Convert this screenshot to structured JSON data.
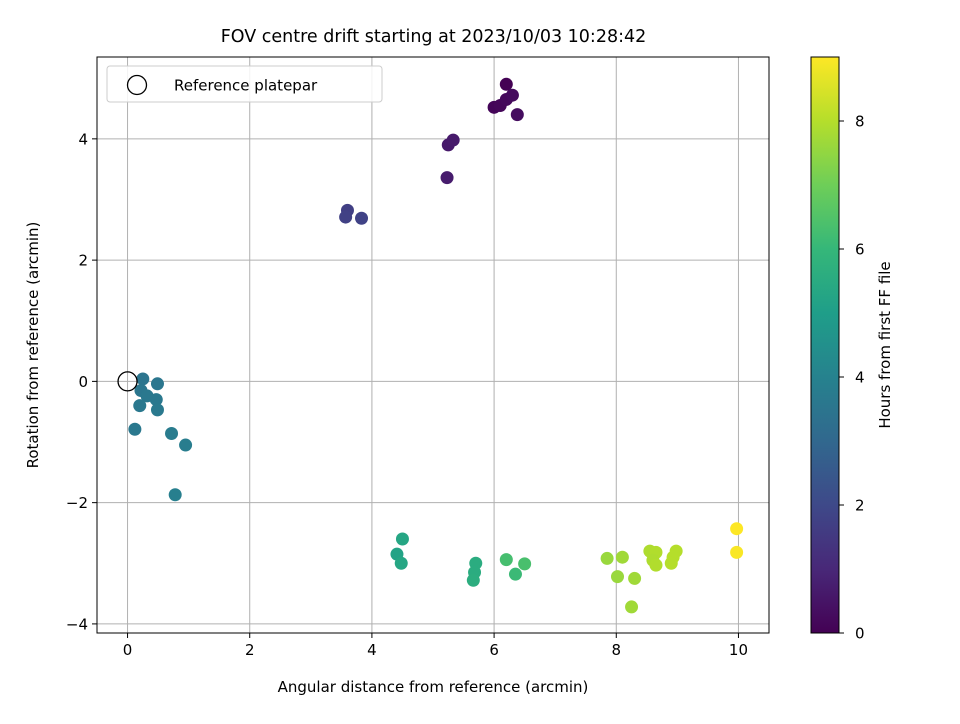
{
  "chart_data": {
    "type": "scatter",
    "title": "FOV centre drift starting at 2023/10/03 10:28:42",
    "xlabel": "Angular distance from reference (arcmin)",
    "ylabel": "Rotation from reference (arcmin)",
    "xlim": [
      -0.5,
      10.5
    ],
    "ylim": [
      -4.15,
      5.35
    ],
    "xticks": [
      0,
      2,
      4,
      6,
      8,
      10
    ],
    "yticks": [
      -4,
      -2,
      0,
      2,
      4
    ],
    "grid": true,
    "legend": {
      "placement": "top-left",
      "entries": [
        "Reference platepar"
      ]
    },
    "reference_point": {
      "x": 0,
      "y": 0,
      "marker": "open-circle"
    },
    "colorbar": {
      "label": "Hours from first FF file",
      "range": [
        0,
        9
      ],
      "ticks": [
        0,
        2,
        4,
        6,
        8
      ],
      "colormap": "viridis",
      "colors": [
        "#440154",
        "#482878",
        "#3e4989",
        "#31688e",
        "#26828e",
        "#1f9e89",
        "#35b779",
        "#6ece58",
        "#b5de2b",
        "#fde725"
      ]
    },
    "series": [
      {
        "points": [
          {
            "x": 6.2,
            "y": 4.9,
            "t": 0.0
          },
          {
            "x": 6.0,
            "y": 4.52,
            "t": 0.1
          },
          {
            "x": 6.1,
            "y": 4.55,
            "t": 0.15
          },
          {
            "x": 6.2,
            "y": 4.65,
            "t": 0.2
          },
          {
            "x": 6.3,
            "y": 4.72,
            "t": 0.25
          },
          {
            "x": 6.38,
            "y": 4.4,
            "t": 0.3
          },
          {
            "x": 5.25,
            "y": 3.9,
            "t": 0.6
          },
          {
            "x": 5.33,
            "y": 3.98,
            "t": 0.65
          },
          {
            "x": 5.23,
            "y": 3.36,
            "t": 0.7
          },
          {
            "x": 3.6,
            "y": 2.82,
            "t": 1.7
          },
          {
            "x": 3.57,
            "y": 2.71,
            "t": 1.75
          },
          {
            "x": 3.83,
            "y": 2.69,
            "t": 1.8
          },
          {
            "x": 0.25,
            "y": 0.04,
            "t": 3.5
          },
          {
            "x": 0.49,
            "y": -0.04,
            "t": 3.55
          },
          {
            "x": 0.22,
            "y": -0.15,
            "t": 3.55
          },
          {
            "x": 0.32,
            "y": -0.24,
            "t": 3.6
          },
          {
            "x": 0.47,
            "y": -0.3,
            "t": 3.6
          },
          {
            "x": 0.2,
            "y": -0.4,
            "t": 3.6
          },
          {
            "x": 0.49,
            "y": -0.47,
            "t": 3.65
          },
          {
            "x": 0.12,
            "y": -0.79,
            "t": 3.6
          },
          {
            "x": 0.72,
            "y": -0.86,
            "t": 3.75
          },
          {
            "x": 0.95,
            "y": -1.05,
            "t": 3.8
          },
          {
            "x": 0.78,
            "y": -1.87,
            "t": 3.9
          },
          {
            "x": 4.5,
            "y": -2.6,
            "t": 5.3
          },
          {
            "x": 4.41,
            "y": -2.85,
            "t": 5.2
          },
          {
            "x": 4.48,
            "y": -3.0,
            "t": 5.3
          },
          {
            "x": 5.7,
            "y": -3.0,
            "t": 5.55
          },
          {
            "x": 5.68,
            "y": -3.15,
            "t": 5.55
          },
          {
            "x": 5.66,
            "y": -3.28,
            "t": 5.6
          },
          {
            "x": 6.2,
            "y": -2.94,
            "t": 6.3
          },
          {
            "x": 6.35,
            "y": -3.18,
            "t": 6.1
          },
          {
            "x": 6.5,
            "y": -3.01,
            "t": 6.35
          },
          {
            "x": 7.85,
            "y": -2.92,
            "t": 7.6
          },
          {
            "x": 8.1,
            "y": -2.9,
            "t": 7.7
          },
          {
            "x": 8.02,
            "y": -3.22,
            "t": 7.6
          },
          {
            "x": 8.3,
            "y": -3.25,
            "t": 7.7
          },
          {
            "x": 8.25,
            "y": -3.72,
            "t": 7.7
          },
          {
            "x": 8.55,
            "y": -2.8,
            "t": 7.9
          },
          {
            "x": 8.65,
            "y": -2.82,
            "t": 7.95
          },
          {
            "x": 8.6,
            "y": -2.95,
            "t": 7.9
          },
          {
            "x": 8.65,
            "y": -3.03,
            "t": 7.95
          },
          {
            "x": 8.98,
            "y": -2.8,
            "t": 8.0
          },
          {
            "x": 8.93,
            "y": -2.9,
            "t": 8.0
          },
          {
            "x": 8.9,
            "y": -3.0,
            "t": 8.0
          },
          {
            "x": 9.97,
            "y": -2.43,
            "t": 9.0
          },
          {
            "x": 9.97,
            "y": -2.82,
            "t": 8.95
          }
        ]
      }
    ]
  }
}
